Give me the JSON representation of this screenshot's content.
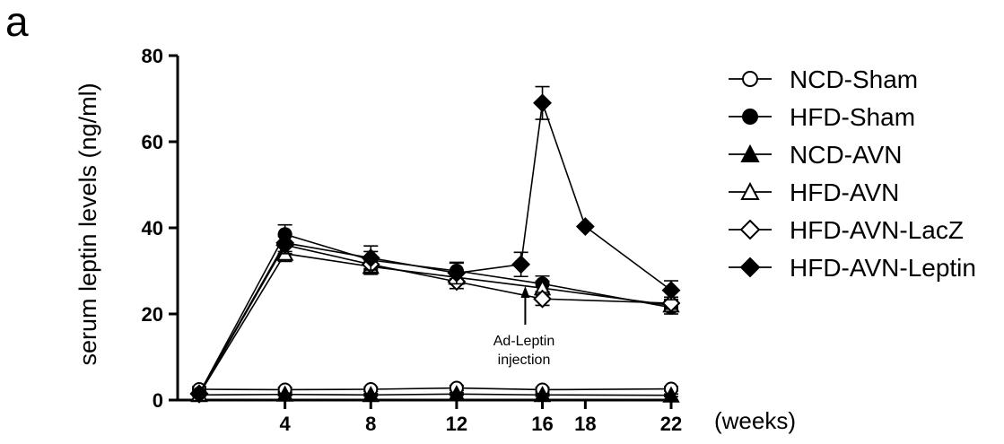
{
  "panel_label": "a",
  "chart_data": {
    "type": "line",
    "ylabel": "serum leptin levels (ng/ml)",
    "x_unit_label": "(weeks)",
    "xlim": [
      0,
      22
    ],
    "ylim": [
      0,
      80
    ],
    "x_ticks": [
      4,
      8,
      12,
      16,
      18,
      22
    ],
    "y_ticks": [
      0,
      20,
      40,
      60,
      80
    ],
    "annotation": {
      "line1": "Ad-Leptin",
      "line2": "injection",
      "x": 15.2
    },
    "legend_position": "right",
    "series": [
      {
        "name": "NCD-Sham",
        "marker": "circle-open",
        "x": [
          0,
          4,
          8,
          12,
          16,
          22
        ],
        "y": [
          2.5,
          2.4,
          2.5,
          2.8,
          2.4,
          2.6
        ],
        "err": [
          0.6,
          0.5,
          0.5,
          0.6,
          0.5,
          0.5
        ]
      },
      {
        "name": "HFD-Sham",
        "marker": "circle-filled",
        "x": [
          0,
          4,
          8,
          12,
          16,
          22
        ],
        "y": [
          1.5,
          38.5,
          32.5,
          30.0,
          27.0,
          21.5
        ],
        "err": [
          0.5,
          2.2,
          2.0,
          1.8,
          1.8,
          1.5
        ]
      },
      {
        "name": "NCD-AVN",
        "marker": "triangle-filled",
        "x": [
          0,
          4,
          8,
          12,
          16,
          22
        ],
        "y": [
          1.2,
          1.3,
          1.2,
          1.4,
          1.2,
          1.1
        ],
        "err": [
          0.3,
          0.3,
          0.3,
          0.3,
          0.3,
          0.3
        ]
      },
      {
        "name": "HFD-AVN",
        "marker": "triangle-open",
        "x": [
          0,
          4,
          8,
          12,
          16,
          22
        ],
        "y": [
          1.3,
          34.0,
          31.0,
          28.5,
          26.0,
          22.0
        ],
        "err": [
          0.4,
          1.8,
          1.8,
          1.6,
          1.6,
          1.4
        ]
      },
      {
        "name": "HFD-AVN-LacZ",
        "marker": "diamond-open",
        "x": [
          0,
          4,
          8,
          12,
          16,
          22
        ],
        "y": [
          1.4,
          36.0,
          31.5,
          27.5,
          23.5,
          22.5
        ],
        "err": [
          0.4,
          2.0,
          1.8,
          1.6,
          1.5,
          1.4
        ]
      },
      {
        "name": "HFD-AVN-Leptin",
        "marker": "diamond-filled",
        "x": [
          0,
          4,
          8,
          12,
          15,
          16,
          18,
          22
        ],
        "y": [
          1.5,
          36.5,
          33.0,
          29.5,
          31.5,
          69.0,
          40.3,
          25.5
        ],
        "err": [
          0.4,
          2.0,
          2.8,
          2.5,
          2.8,
          3.8,
          0,
          2.2
        ]
      }
    ]
  }
}
